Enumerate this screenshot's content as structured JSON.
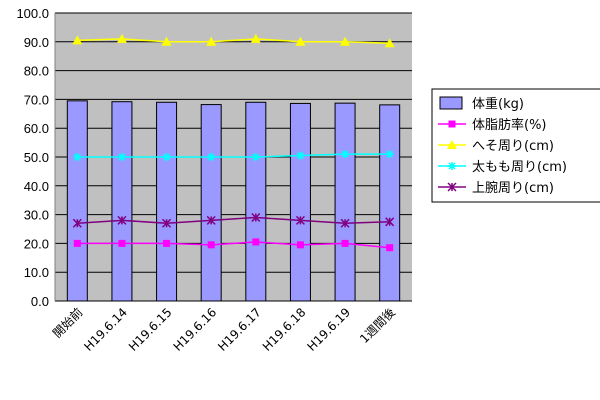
{
  "chart_data": {
    "type": "bar+line",
    "categories": [
      "開始前",
      "H19.6.14",
      "H19.6.15",
      "H19.6.16",
      "H19.6.17",
      "H19.6.18",
      "H19.6.19",
      "1週間後"
    ],
    "ylim": [
      0,
      100
    ],
    "yticks": [
      "100.0",
      "90.0",
      "80.0",
      "70.0",
      "60.0",
      "50.0",
      "40.0",
      "30.0",
      "20.0",
      "10.0",
      "0.0"
    ],
    "grid": true,
    "legend_position": "right",
    "series": [
      {
        "name": "体重(kg)",
        "kind": "bar",
        "color": "#9999ff",
        "values": [
          69.5,
          69.2,
          69.0,
          68.2,
          69.0,
          68.6,
          68.7,
          68.1
        ]
      },
      {
        "name": "体脂肪率(%)",
        "kind": "line",
        "marker": "square",
        "color": "#ff00ff",
        "values": [
          20.0,
          20.0,
          20.0,
          19.5,
          20.5,
          19.5,
          20.0,
          18.5
        ]
      },
      {
        "name": "へそ周り(cm)",
        "kind": "line",
        "marker": "triangle",
        "color": "#ffff00",
        "values": [
          90.5,
          91.0,
          90.0,
          90.0,
          91.0,
          90.0,
          90.0,
          89.5
        ]
      },
      {
        "name": "太もも周り(cm)",
        "kind": "line",
        "marker": "star",
        "color": "#00ffff",
        "values": [
          50.0,
          50.0,
          50.0,
          50.0,
          50.0,
          50.5,
          51.0,
          51.0
        ]
      },
      {
        "name": "上腕周り(cm)",
        "kind": "line",
        "marker": "asterisk",
        "color": "#800080",
        "values": [
          27.0,
          28.0,
          27.0,
          28.0,
          29.0,
          28.0,
          27.0,
          27.5
        ]
      }
    ]
  }
}
